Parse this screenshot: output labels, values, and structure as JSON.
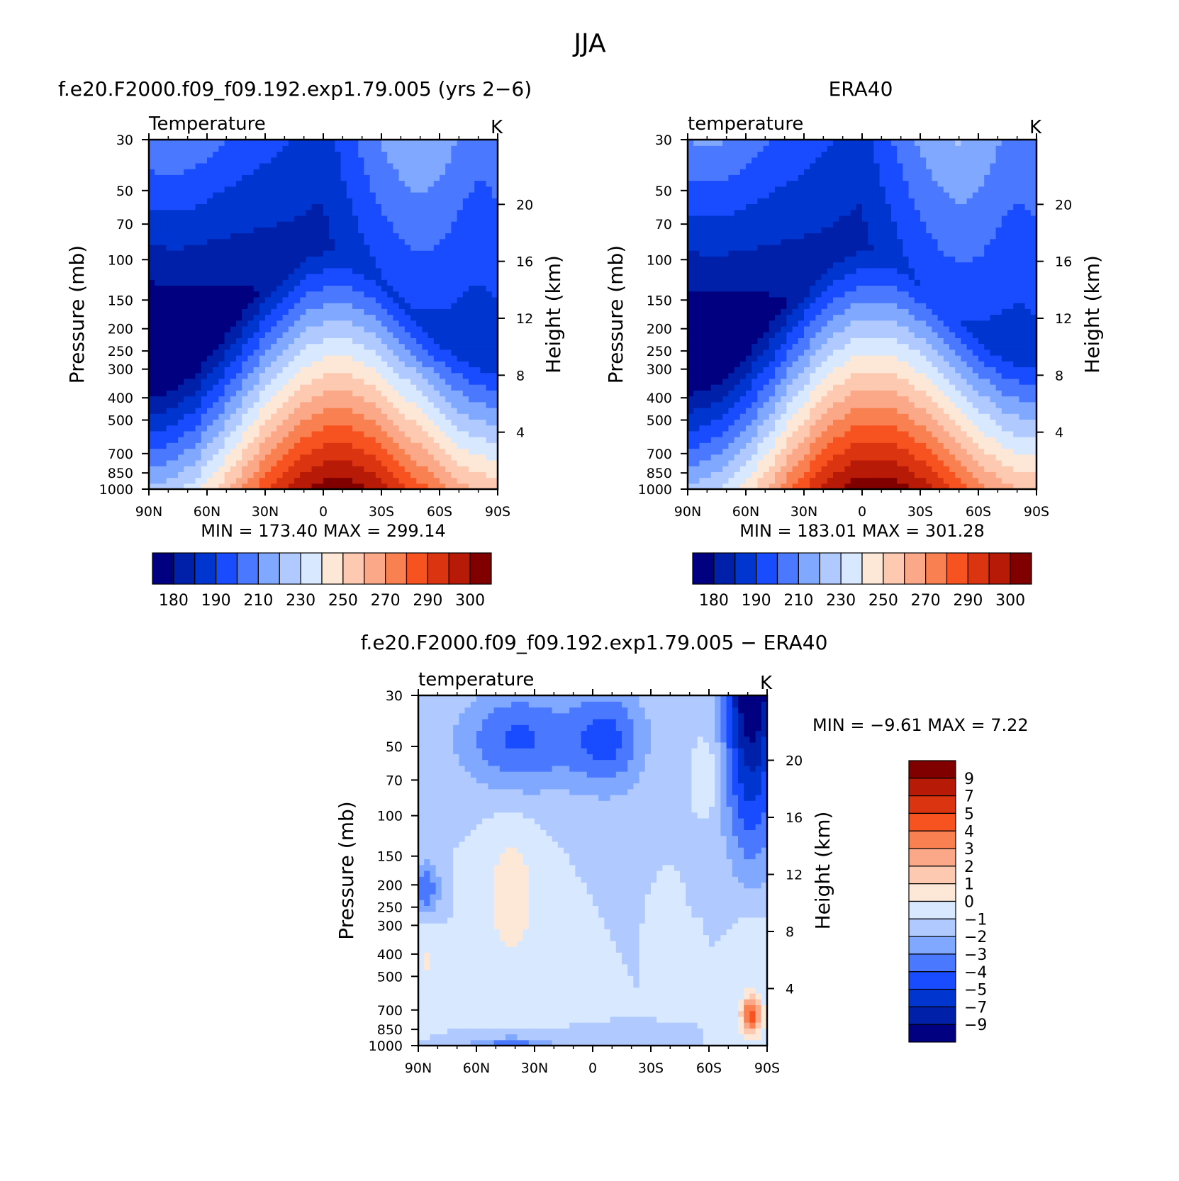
{
  "figure": {
    "title": "JJA"
  },
  "chart_data": [
    {
      "type": "heatmap",
      "title": "f.e20.F2000.f09_f09.192.exp1.79.005 (yrs 2−6)",
      "variable": "Temperature",
      "units": "K",
      "ylabel": "Pressure (mb)",
      "ylabel_right": "Height (km)",
      "x_ticks": [
        "90N",
        "60N",
        "30N",
        "0",
        "30S",
        "60S",
        "90S"
      ],
      "y_ticks": [
        "30",
        "50",
        "70",
        "100",
        "150",
        "200",
        "250",
        "300",
        "400",
        "500",
        "700",
        "850",
        "1000"
      ],
      "height_ticks": [
        "20",
        "16",
        "12",
        "8",
        "4"
      ],
      "xlim": [
        "90N",
        "90S"
      ],
      "ylim": [
        1000,
        30
      ],
      "y_scale": "log",
      "stats": "MIN = 173.40   MAX = 299.14",
      "min": 173.4,
      "max": 299.14,
      "colorbar": {
        "orientation": "horizontal",
        "labels": [
          "180",
          "190",
          "210",
          "230",
          "250",
          "270",
          "290",
          "300"
        ],
        "colors": [
          "#000080",
          "#0020aa",
          "#0035d0",
          "#1a4cff",
          "#4a79ff",
          "#80a8ff",
          "#b0caff",
          "#d7e8ff",
          "#fde8d8",
          "#fdc9b0",
          "#fba888",
          "#f98050",
          "#f75320",
          "#db3410",
          "#b81a08",
          "#800000"
        ]
      }
    },
    {
      "type": "heatmap",
      "title": "ERA40",
      "variable": "temperature",
      "units": "K",
      "ylabel": "Pressure (mb)",
      "ylabel_right": "Height (km)",
      "x_ticks": [
        "90N",
        "60N",
        "30N",
        "0",
        "30S",
        "60S",
        "90S"
      ],
      "y_ticks": [
        "30",
        "50",
        "70",
        "100",
        "150",
        "200",
        "250",
        "300",
        "400",
        "500",
        "700",
        "850",
        "1000"
      ],
      "height_ticks": [
        "20",
        "16",
        "12",
        "8",
        "4"
      ],
      "xlim": [
        "90N",
        "90S"
      ],
      "ylim": [
        1000,
        30
      ],
      "y_scale": "log",
      "stats": "MIN = 183.01   MAX = 301.28",
      "min": 183.01,
      "max": 301.28,
      "colorbar": {
        "orientation": "horizontal",
        "labels": [
          "180",
          "190",
          "210",
          "230",
          "250",
          "270",
          "290",
          "300"
        ],
        "colors": [
          "#000080",
          "#0020aa",
          "#0035d0",
          "#1a4cff",
          "#4a79ff",
          "#80a8ff",
          "#b0caff",
          "#d7e8ff",
          "#fde8d8",
          "#fdc9b0",
          "#fba888",
          "#f98050",
          "#f75320",
          "#db3410",
          "#b81a08",
          "#800000"
        ]
      }
    },
    {
      "type": "heatmap",
      "title": "f.e20.F2000.f09_f09.192.exp1.79.005 − ERA40",
      "variable": "temperature",
      "units": "K",
      "ylabel": "Pressure (mb)",
      "ylabel_right": "Height (km)",
      "x_ticks": [
        "90N",
        "60N",
        "30N",
        "0",
        "30S",
        "60S",
        "90S"
      ],
      "y_ticks": [
        "30",
        "50",
        "70",
        "100",
        "150",
        "200",
        "250",
        "300",
        "400",
        "500",
        "700",
        "850",
        "1000"
      ],
      "height_ticks": [
        "20",
        "16",
        "12",
        "8",
        "4"
      ],
      "xlim": [
        "90N",
        "90S"
      ],
      "ylim": [
        1000,
        30
      ],
      "y_scale": "log",
      "stats": "MIN =   −9.61   MAX =    7.22",
      "min": -9.61,
      "max": 7.22,
      "colorbar": {
        "orientation": "vertical",
        "labels": [
          "9",
          "7",
          "5",
          "4",
          "3",
          "2",
          "1",
          "0",
          "−1",
          "−2",
          "−3",
          "−4",
          "−5",
          "−7",
          "−9"
        ],
        "colors": [
          "#800000",
          "#b81a08",
          "#db3410",
          "#f75320",
          "#f98050",
          "#fba888",
          "#fdc9b0",
          "#fde8d8",
          "#d7e8ff",
          "#b0caff",
          "#80a8ff",
          "#4a79ff",
          "#1a4cff",
          "#0035d0",
          "#0020aa",
          "#000080"
        ]
      }
    }
  ]
}
